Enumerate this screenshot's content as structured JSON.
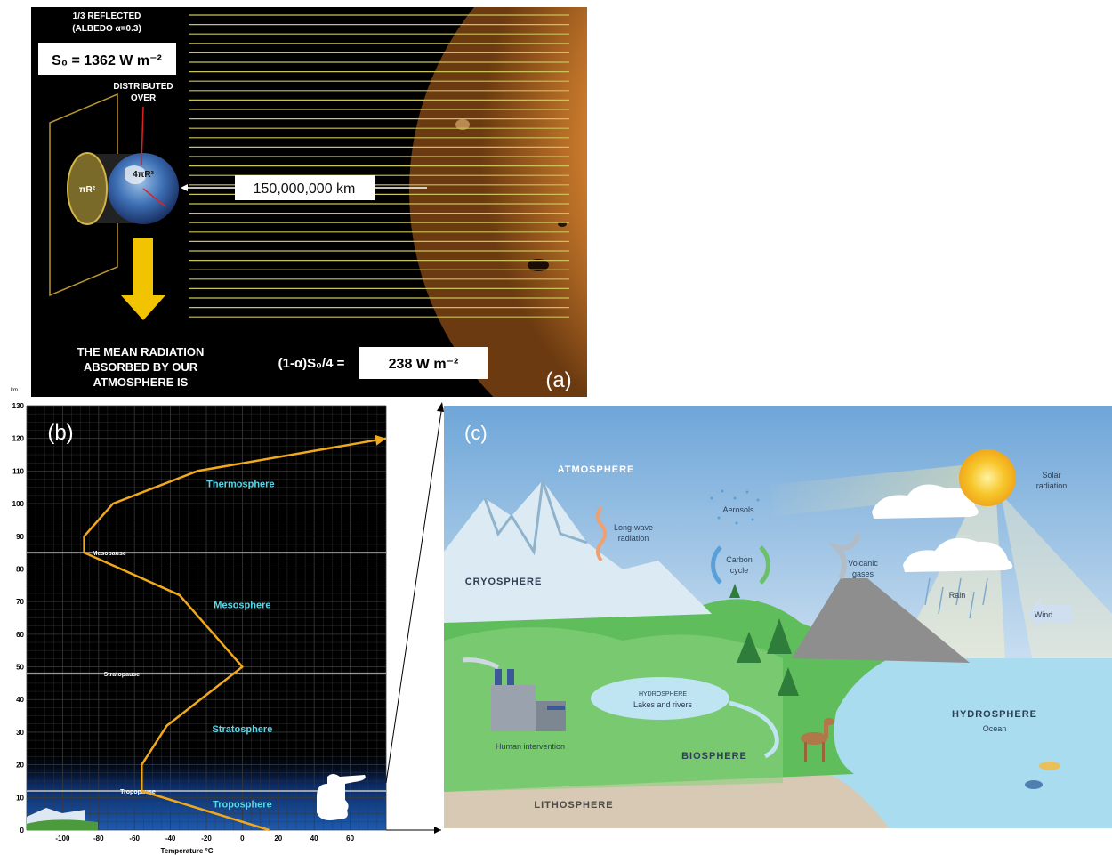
{
  "panel_a": {
    "label": "(a)",
    "reflected_line1": "1/3 REFLECTED",
    "reflected_line2": "(ALBEDO α=0.3)",
    "solar_constant": "S₀ = 1362 W m⁻²",
    "distributed_line1": "DISTRIBUTED",
    "distributed_line2": "OVER",
    "sphere_area": "4πR²",
    "disc_area": "πR²",
    "distance": "150,000,000 km",
    "mean_line1": "THE MEAN RADIATION",
    "mean_line2": "ABSORBED BY OUR",
    "mean_line3": "ATMOSPHERE IS",
    "formula": "(1-α)S₀/4 =",
    "result": "238 W m⁻²"
  },
  "panel_b": {
    "label": "(b)",
    "unit_km": "km",
    "xlabel": "Temperature  °C",
    "layers": [
      "Thermosphere",
      "Mesosphere",
      "Stratosphere",
      "Troposphere"
    ],
    "pauses": [
      "Mesopause",
      "Stratopause",
      "Tropopause"
    ]
  },
  "panel_c": {
    "label": "(c)",
    "atmosphere": "ATMOSPHERE",
    "cryosphere": "CRYOSPHERE",
    "biosphere": "BIOSPHERE",
    "lithosphere": "LITHOSPHERE",
    "hydrosphere_ocean": "HYDROSPHERE",
    "ocean": "Ocean",
    "hydrosphere_lakes": "HYDROSPHERE",
    "lakes": "Lakes and rivers",
    "longwave_line1": "Long-wave",
    "longwave_line2": "radiation",
    "aerosols": "Aerosols",
    "carbon_line1": "Carbon",
    "carbon_line2": "cycle",
    "volcanic_line1": "Volcanic",
    "volcanic_line2": "gases",
    "solar_line1": "Solar",
    "solar_line2": "radiation",
    "rain": "Rain",
    "wind": "Wind",
    "human": "Human intervention"
  },
  "chart_data": {
    "type": "line",
    "title": "",
    "xlabel": "Temperature  °C",
    "ylabel": "km",
    "xlim": [
      -120,
      80
    ],
    "ylim": [
      0,
      130
    ],
    "x_ticks": [
      -100,
      -80,
      -60,
      -40,
      -20,
      0,
      20,
      40,
      60
    ],
    "y_ticks": [
      0,
      10,
      20,
      30,
      40,
      50,
      60,
      70,
      80,
      90,
      100,
      110,
      120,
      130
    ],
    "grid": true,
    "series": [
      {
        "color": "#f0a81c",
        "x": [
          15,
          -56,
          -56,
          -42,
          0,
          -35,
          -88,
          -88,
          -72,
          -25,
          80
        ],
        "y": [
          0,
          12,
          20,
          32,
          50,
          72,
          85,
          90,
          100,
          110,
          120
        ]
      }
    ],
    "layer_labels": [
      {
        "text": "Thermosphere",
        "x": -1,
        "y": 105
      },
      {
        "text": "Mesosphere",
        "x": 0,
        "y": 68
      },
      {
        "text": "Stratosphere",
        "x": 0,
        "y": 30
      },
      {
        "text": "Troposphere",
        "x": 0,
        "y": 7
      }
    ],
    "pause_lines": [
      {
        "text": "Mesopause",
        "y": 85
      },
      {
        "text": "Stratopause",
        "y": 48
      },
      {
        "text": "Tropopause",
        "y": 12
      }
    ]
  }
}
